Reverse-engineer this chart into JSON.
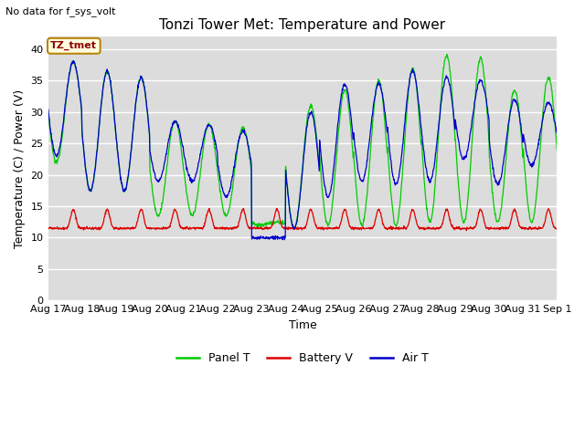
{
  "title": "Tonzi Tower Met: Temperature and Power",
  "subtitle": "No data for f_sys_volt",
  "xlabel": "Time",
  "ylabel": "Temperature (C) / Power (V)",
  "ylim": [
    0,
    42
  ],
  "yticks": [
    0,
    5,
    10,
    15,
    20,
    25,
    30,
    35,
    40
  ],
  "date_labels": [
    "Aug 17",
    "Aug 18",
    "Aug 19",
    "Aug 20",
    "Aug 21",
    "Aug 22",
    "Aug 23",
    "Aug 24",
    "Aug 25",
    "Aug 26",
    "Aug 27",
    "Aug 28",
    "Aug 29",
    "Aug 30",
    "Aug 31",
    "Sep 1"
  ],
  "panel_color": "#00cc00",
  "battery_color": "#dd0000",
  "air_color": "#0000cc",
  "legend_label_panel": "Panel T",
  "legend_label_battery": "Battery V",
  "legend_label_air": "Air T",
  "annotation_text": "TZ_tmet",
  "plot_bg_color": "#dcdcdc",
  "n_days": 15,
  "n_points": 1440,
  "panel_peaks": [
    38.0,
    36.5,
    35.5,
    28.5,
    28.0,
    27.5,
    12.5,
    31.0,
    33.5,
    35.0,
    37.0,
    39.0,
    38.5,
    33.5,
    35.5
  ],
  "panel_mins": [
    22.0,
    17.5,
    17.5,
    13.5,
    13.5,
    13.5,
    12.0,
    11.5,
    12.0,
    12.0,
    12.0,
    12.5,
    12.5,
    12.5,
    12.5
  ],
  "air_peaks": [
    38.0,
    36.5,
    35.5,
    28.5,
    28.0,
    27.0,
    10.0,
    30.0,
    34.5,
    34.5,
    36.5,
    35.5,
    35.0,
    32.0,
    31.5
  ],
  "air_mins": [
    23.0,
    17.5,
    17.5,
    19.0,
    19.0,
    16.5,
    10.0,
    11.5,
    16.5,
    19.0,
    18.5,
    19.0,
    22.5,
    18.5,
    21.5
  ],
  "bat_base": 11.5,
  "bat_peak": 3.0
}
